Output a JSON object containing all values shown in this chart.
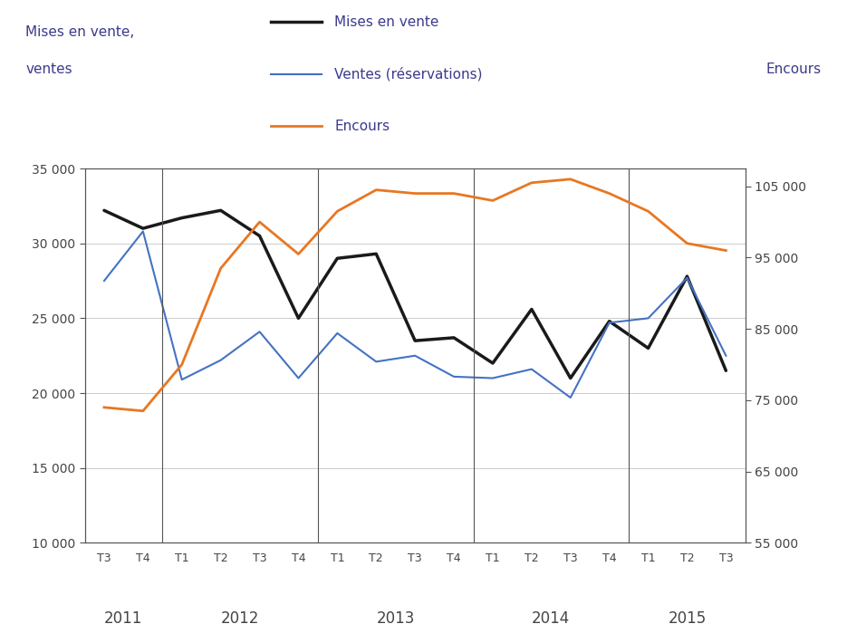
{
  "x_labels": [
    "T3",
    "T4",
    "T1",
    "T2",
    "T3",
    "T4",
    "T1",
    "T2",
    "T3",
    "T4",
    "T1",
    "T2",
    "T3",
    "T4",
    "T1",
    "T2",
    "T3"
  ],
  "year_labels": [
    {
      "label": "2011",
      "positions": [
        0,
        1
      ]
    },
    {
      "label": "2012",
      "positions": [
        2,
        3,
        4,
        5
      ]
    },
    {
      "label": "2013",
      "positions": [
        6,
        7,
        8,
        9
      ]
    },
    {
      "label": "2014",
      "positions": [
        10,
        11,
        12,
        13
      ]
    },
    {
      "label": "2015",
      "positions": [
        14,
        15,
        16
      ]
    }
  ],
  "year_dividers": [
    2,
    6,
    10,
    14
  ],
  "mises_en_vente": [
    32200,
    31000,
    31700,
    32200,
    30500,
    25000,
    29000,
    29300,
    23500,
    23700,
    22000,
    25600,
    21000,
    24800,
    23000,
    27800,
    21500
  ],
  "ventes_reservations": [
    27500,
    30800,
    20900,
    22200,
    24100,
    21000,
    24000,
    22100,
    22500,
    21100,
    21000,
    21600,
    19700,
    24700,
    25000,
    27700,
    22500
  ],
  "encours": [
    74000,
    73500,
    80000,
    93500,
    100000,
    95500,
    101500,
    104500,
    104000,
    104000,
    103000,
    105500,
    106000,
    104000,
    101500,
    97000,
    96000
  ],
  "left_ylim": [
    10000,
    35000
  ],
  "left_yticks": [
    10000,
    15000,
    20000,
    25000,
    30000,
    35000
  ],
  "left_yticklabels": [
    "10 000",
    "15 000",
    "20 000",
    "25 000",
    "30 000",
    "35 000"
  ],
  "right_ylim": [
    55000,
    107500
  ],
  "right_yticks": [
    55000,
    65000,
    75000,
    85000,
    95000,
    105000
  ],
  "right_yticklabels": [
    "55 000",
    "65 000",
    "75 000",
    "85 000",
    "95 000",
    "105 000"
  ],
  "left_ylabel1": "Mises en vente,",
  "left_ylabel2": "ventes",
  "right_ylabel": "Encours",
  "legend_items": [
    {
      "label": "Mises en vente",
      "color": "#1a1a1a",
      "linewidth": 2.5
    },
    {
      "label": "Ventes (réservations)",
      "color": "#4472c4",
      "linewidth": 1.5
    },
    {
      "label": "Encours",
      "color": "#e87722",
      "linewidth": 2.0
    }
  ],
  "mises_color": "#1a1a1a",
  "ventes_color": "#4472c4",
  "encours_color": "#e87722",
  "background_color": "#ffffff",
  "grid_color": "#cccccc",
  "spine_color": "#555555",
  "tick_color": "#444444",
  "label_color": "#3a3a8c",
  "text_fontsize": 11,
  "tick_fontsize": 10,
  "year_fontsize": 12
}
